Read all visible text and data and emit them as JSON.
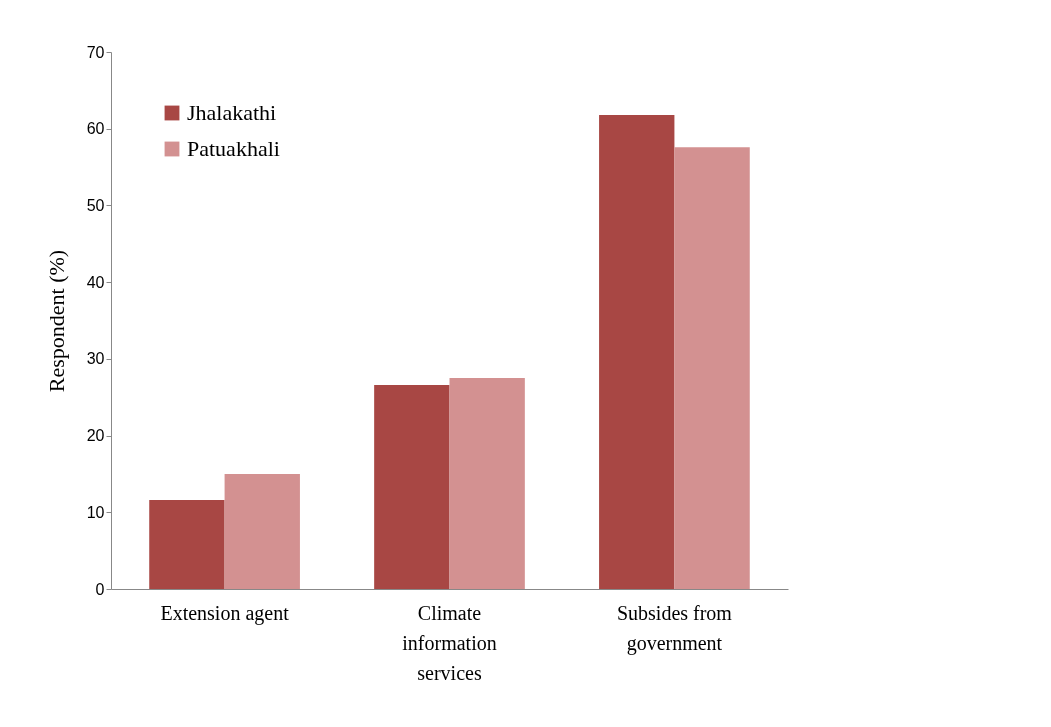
{
  "chart_data": {
    "type": "bar",
    "ylabel": "Respondent (%)",
    "categories": [
      "Extension agent",
      "Climate information services",
      "Subsides from government"
    ],
    "series": [
      {
        "name": "Jhalakathi",
        "color": "#a84744",
        "values": [
          11.6,
          26.6,
          61.8
        ]
      },
      {
        "name": "Patuakhali",
        "color": "#d39191",
        "values": [
          15.0,
          27.5,
          57.6
        ]
      }
    ],
    "ylim": [
      0,
      70
    ],
    "yticks": [
      0,
      10,
      20,
      30,
      40,
      50,
      60,
      70
    ],
    "grid": false,
    "legend": "top left"
  }
}
